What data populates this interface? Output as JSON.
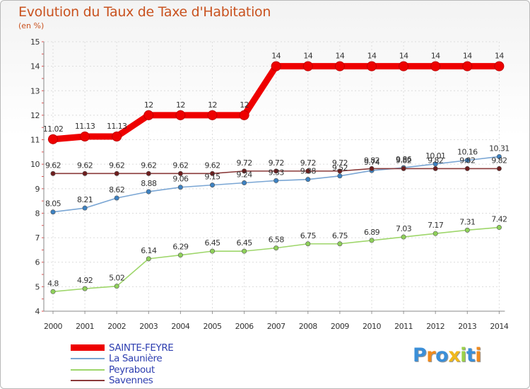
{
  "chart_data": {
    "type": "line",
    "title": "Evolution du Taux de Taxe d'Habitation",
    "subtitle": "(en %)",
    "xlabel": "",
    "ylabel": "",
    "ylim": [
      4,
      15
    ],
    "yticks": [
      "4",
      "5",
      "6",
      "7",
      "8",
      "9",
      "10",
      "11",
      "12",
      "13",
      "14",
      "15"
    ],
    "categories": [
      "2000",
      "2001",
      "2002",
      "2003",
      "2004",
      "2005",
      "2006",
      "2007",
      "2008",
      "2009",
      "2010",
      "2011",
      "2012",
      "2013",
      "2014"
    ],
    "series": [
      {
        "name": "SAINTE-FEYRE",
        "color": "#ee0000",
        "marker": "#ee0000",
        "values": [
          11.02,
          11.13,
          11.13,
          12,
          12,
          12,
          12,
          14,
          14,
          14,
          14,
          14,
          14,
          14,
          14
        ],
        "labels": [
          "11.02",
          "11.13",
          "11.13",
          "12",
          "12",
          "12",
          "12",
          "14",
          "14",
          "14",
          "14",
          "14",
          "14",
          "14",
          "14"
        ]
      },
      {
        "name": "La Saunière",
        "color": "#7aa6d4",
        "marker": "#3d82c2",
        "values": [
          8.05,
          8.21,
          8.62,
          8.88,
          9.06,
          9.15,
          9.24,
          9.33,
          9.38,
          9.52,
          9.74,
          9.86,
          10.01,
          10.16,
          10.31
        ],
        "labels": [
          "8.05",
          "8.21",
          "8.62",
          "8.88",
          "9.06",
          "9.15",
          "9.24",
          "9.33",
          "9.38",
          "9.52",
          "9.74",
          "9.86",
          "10.01",
          "10.16",
          "10.31"
        ]
      },
      {
        "name": "Peyrabout",
        "color": "#9ed66a",
        "marker": "#8fd15a",
        "values": [
          4.8,
          4.92,
          5.02,
          6.14,
          6.29,
          6.45,
          6.45,
          6.58,
          6.75,
          6.75,
          6.89,
          7.03,
          7.17,
          7.31,
          7.42
        ],
        "labels": [
          "4.8",
          "4.92",
          "5.02",
          "6.14",
          "6.29",
          "6.45",
          "6.45",
          "6.58",
          "6.75",
          "6.75",
          "6.89",
          "7.03",
          "7.17",
          "7.31",
          "7.42"
        ]
      },
      {
        "name": "Savennes",
        "color": "#8a3a3a",
        "marker": "#6e1e1e",
        "values": [
          9.62,
          9.62,
          9.62,
          9.62,
          9.62,
          9.62,
          9.72,
          9.72,
          9.72,
          9.72,
          9.82,
          9.82,
          9.82,
          9.82,
          9.82
        ],
        "labels": [
          "9.62",
          "9.62",
          "9.62",
          "9.62",
          "9.62",
          "9.62",
          "9.72",
          "9.72",
          "9.72",
          "9.72",
          "9.82",
          "9.82",
          "9.82",
          "9.82",
          "9.82"
        ]
      }
    ],
    "legend_position": "bottom-left"
  },
  "branding": {
    "logo_letters": [
      {
        "ch": "P",
        "color": "#3b8fd8"
      },
      {
        "ch": "r",
        "color": "#f08a1c"
      },
      {
        "ch": "o",
        "color": "#3b8fd8"
      },
      {
        "ch": "x",
        "color": "#f0b81c"
      },
      {
        "ch": "i",
        "color": "#9bd14a"
      },
      {
        "ch": "t",
        "color": "#3b8fd8"
      },
      {
        "ch": "i",
        "color": "#f08a1c"
      }
    ]
  }
}
